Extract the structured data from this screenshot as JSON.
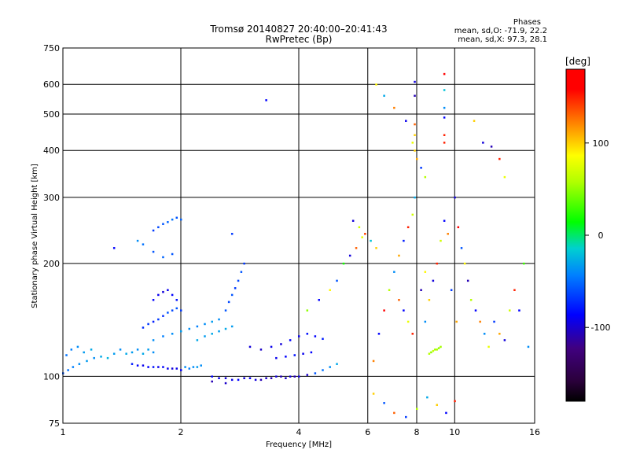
{
  "chart_data": {
    "type": "scatter",
    "title": "Tromsø 20140827 20:40:00–20:41:43",
    "subtitle": "RwPretec (Bp)",
    "xlabel": "Frequency [MHz]",
    "ylabel": "Stationary phase Virtual Height [km]",
    "x_scale": "log2",
    "y_scale": "log",
    "xlim": [
      1,
      16
    ],
    "ylim": [
      75,
      750
    ],
    "x_ticks": [
      1,
      2,
      4,
      6,
      8,
      10,
      16
    ],
    "y_ticks": [
      75,
      100,
      200,
      300,
      400,
      500,
      600,
      750
    ],
    "grid": true,
    "phases_box": {
      "heading": "Phases",
      "line1": "mean, sd,O: -71.9, 22.2",
      "line2": "mean, sd,X:  97.3, 28.1"
    },
    "colorbar": {
      "label": "[deg]",
      "ticks": [
        100,
        0,
        -100
      ],
      "range": [
        -180,
        180
      ]
    },
    "series": [
      {
        "points": [
          [
            1.0,
            102,
            -60
          ],
          [
            1.03,
            104,
            -50
          ],
          [
            1.06,
            106,
            -45
          ],
          [
            1.1,
            108,
            -40
          ],
          [
            1.15,
            110,
            -35
          ],
          [
            1.2,
            112,
            -40
          ],
          [
            1.25,
            113,
            -30
          ],
          [
            1.3,
            112,
            -25
          ],
          [
            1.02,
            114,
            -50
          ],
          [
            1.05,
            118,
            -45
          ],
          [
            1.09,
            120,
            -40
          ],
          [
            1.13,
            116,
            -35
          ],
          [
            1.18,
            118,
            -30
          ],
          [
            1.35,
            115,
            -35
          ],
          [
            1.4,
            118,
            -40
          ],
          [
            1.45,
            115,
            -30
          ],
          [
            1.5,
            116,
            -35
          ],
          [
            1.55,
            118,
            -40
          ],
          [
            1.6,
            115,
            -30
          ],
          [
            1.65,
            118,
            -35
          ],
          [
            1.7,
            116,
            -40
          ],
          [
            1.5,
            108,
            -80
          ],
          [
            1.55,
            107,
            -90
          ],
          [
            1.6,
            107,
            -95
          ],
          [
            1.65,
            106,
            -90
          ],
          [
            1.7,
            106,
            -85
          ],
          [
            1.75,
            106,
            -95
          ],
          [
            1.8,
            106,
            -90
          ],
          [
            1.85,
            105,
            -95
          ],
          [
            1.9,
            105,
            -100
          ],
          [
            1.95,
            105,
            -95
          ],
          [
            2.0,
            104,
            -90
          ],
          [
            2.05,
            106,
            -40
          ],
          [
            2.1,
            105,
            -45
          ],
          [
            2.15,
            106,
            -40
          ],
          [
            2.2,
            106,
            -35
          ],
          [
            2.25,
            107,
            -40
          ],
          [
            1.6,
            135,
            -75
          ],
          [
            1.65,
            138,
            -70
          ],
          [
            1.7,
            140,
            -80
          ],
          [
            1.75,
            142,
            -70
          ],
          [
            1.8,
            145,
            -75
          ],
          [
            1.85,
            148,
            -60
          ],
          [
            1.9,
            150,
            -65
          ],
          [
            1.95,
            152,
            -60
          ],
          [
            2.0,
            150,
            -70
          ],
          [
            1.7,
            160,
            -90
          ],
          [
            1.75,
            165,
            -95
          ],
          [
            1.8,
            168,
            -100
          ],
          [
            1.85,
            170,
            -95
          ],
          [
            1.9,
            165,
            -90
          ],
          [
            1.95,
            160,
            -85
          ],
          [
            1.7,
            125,
            -40
          ],
          [
            1.8,
            128,
            -45
          ],
          [
            1.9,
            130,
            -40
          ],
          [
            2.0,
            132,
            -35
          ],
          [
            2.1,
            134,
            -40
          ],
          [
            2.2,
            136,
            -45
          ],
          [
            2.3,
            138,
            -40
          ],
          [
            2.4,
            140,
            -35
          ],
          [
            2.5,
            142,
            -40
          ],
          [
            2.2,
            125,
            -30
          ],
          [
            2.3,
            128,
            -35
          ],
          [
            2.4,
            130,
            -30
          ],
          [
            2.5,
            132,
            -35
          ],
          [
            2.6,
            134,
            -30
          ],
          [
            2.7,
            136,
            -35
          ],
          [
            2.6,
            150,
            -60
          ],
          [
            2.65,
            158,
            -65
          ],
          [
            2.7,
            165,
            -60
          ],
          [
            2.75,
            172,
            -70
          ],
          [
            2.8,
            180,
            -65
          ],
          [
            2.85,
            190,
            -60
          ],
          [
            2.9,
            200,
            -70
          ],
          [
            1.7,
            245,
            -70
          ],
          [
            1.75,
            250,
            -65
          ],
          [
            1.8,
            255,
            -60
          ],
          [
            1.85,
            258,
            -55
          ],
          [
            1.9,
            262,
            -50
          ],
          [
            1.95,
            265,
            -60
          ],
          [
            2.0,
            262,
            -55
          ],
          [
            1.6,
            225,
            -50
          ],
          [
            1.7,
            215,
            -60
          ],
          [
            1.8,
            208,
            -55
          ],
          [
            1.9,
            212,
            -60
          ],
          [
            1.35,
            220,
            -90
          ],
          [
            1.55,
            230,
            -40
          ],
          [
            3.3,
            545,
            -90
          ],
          [
            2.7,
            240,
            -70
          ],
          [
            2.4,
            100,
            -90
          ],
          [
            2.5,
            99,
            -95
          ],
          [
            2.6,
            99,
            -100
          ],
          [
            2.7,
            98,
            -95
          ],
          [
            2.8,
            98,
            -90
          ],
          [
            2.9,
            99,
            -100
          ],
          [
            3.0,
            99,
            -95
          ],
          [
            3.1,
            98,
            -100
          ],
          [
            3.2,
            98,
            -110
          ],
          [
            3.3,
            99,
            -105
          ],
          [
            3.4,
            99,
            -110
          ],
          [
            3.5,
            100,
            -100
          ],
          [
            3.6,
            100,
            -110
          ],
          [
            3.7,
            99,
            -105
          ],
          [
            3.8,
            100,
            -100
          ],
          [
            3.9,
            100,
            -110
          ],
          [
            4.0,
            100,
            -100
          ],
          [
            4.2,
            101,
            -105
          ],
          [
            4.4,
            102,
            -60
          ],
          [
            3.0,
            120,
            -100
          ],
          [
            3.2,
            118,
            -105
          ],
          [
            3.4,
            120,
            -95
          ],
          [
            3.6,
            122,
            -100
          ],
          [
            3.8,
            125,
            -90
          ],
          [
            4.0,
            128,
            -95
          ],
          [
            4.2,
            130,
            -85
          ],
          [
            4.4,
            128,
            -90
          ],
          [
            4.6,
            126,
            -80
          ],
          [
            3.5,
            112,
            -95
          ],
          [
            3.7,
            113,
            -90
          ],
          [
            3.9,
            114,
            -85
          ],
          [
            4.1,
            115,
            -95
          ],
          [
            4.3,
            116,
            -90
          ],
          [
            2.4,
            97,
            -110
          ],
          [
            2.6,
            96,
            -105
          ],
          [
            4.6,
            104,
            -50
          ],
          [
            4.8,
            106,
            -40
          ],
          [
            5.0,
            108,
            -30
          ],
          [
            4.2,
            150,
            50
          ],
          [
            4.5,
            160,
            -90
          ],
          [
            4.8,
            170,
            90
          ],
          [
            5.0,
            180,
            -60
          ],
          [
            5.2,
            200,
            20
          ],
          [
            5.4,
            210,
            -100
          ],
          [
            5.6,
            220,
            130
          ],
          [
            5.8,
            235,
            80
          ],
          [
            6.2,
            110,
            120
          ],
          [
            6.4,
            130,
            -90
          ],
          [
            6.6,
            150,
            160
          ],
          [
            6.8,
            170,
            60
          ],
          [
            7.0,
            190,
            -40
          ],
          [
            7.2,
            210,
            110
          ],
          [
            7.4,
            230,
            -80
          ],
          [
            7.6,
            250,
            150
          ],
          [
            7.8,
            270,
            70
          ],
          [
            6.3,
            600,
            90
          ],
          [
            6.6,
            560,
            -30
          ],
          [
            7.0,
            520,
            120
          ],
          [
            7.5,
            480,
            -95
          ],
          [
            7.8,
            420,
            80
          ],
          [
            8.0,
            380,
            110
          ],
          [
            8.2,
            360,
            -70
          ],
          [
            8.4,
            340,
            60
          ],
          [
            7.9,
            610,
            -100
          ],
          [
            7.9,
            560,
            -110
          ],
          [
            7.9,
            470,
            130
          ],
          [
            7.9,
            440,
            100
          ],
          [
            7.9,
            400,
            100
          ],
          [
            7.9,
            300,
            -30
          ],
          [
            9.4,
            640,
            160
          ],
          [
            9.4,
            580,
            -20
          ],
          [
            9.4,
            520,
            -40
          ],
          [
            9.4,
            490,
            -90
          ],
          [
            9.4,
            440,
            150
          ],
          [
            9.4,
            420,
            150
          ],
          [
            8.6,
            115,
            60
          ],
          [
            8.7,
            116,
            50
          ],
          [
            8.8,
            117,
            65
          ],
          [
            8.9,
            118,
            55
          ],
          [
            9.0,
            118,
            60
          ],
          [
            9.1,
            119,
            50
          ],
          [
            9.2,
            120,
            55
          ],
          [
            8.4,
            140,
            -40
          ],
          [
            8.6,
            160,
            100
          ],
          [
            8.8,
            180,
            -100
          ],
          [
            9.0,
            200,
            150
          ],
          [
            9.2,
            230,
            70
          ],
          [
            9.4,
            260,
            -90
          ],
          [
            9.6,
            240,
            120
          ],
          [
            10.0,
            300,
            -100
          ],
          [
            10.2,
            250,
            160
          ],
          [
            10.4,
            220,
            -60
          ],
          [
            10.6,
            200,
            90
          ],
          [
            10.8,
            180,
            -110
          ],
          [
            11.0,
            160,
            60
          ],
          [
            11.3,
            150,
            -90
          ],
          [
            11.6,
            140,
            120
          ],
          [
            11.9,
            130,
            -40
          ],
          [
            12.2,
            120,
            80
          ],
          [
            12.6,
            140,
            -70
          ],
          [
            13.0,
            130,
            110
          ],
          [
            13.4,
            125,
            -100
          ],
          [
            13.8,
            150,
            70
          ],
          [
            14.2,
            170,
            150
          ],
          [
            14.6,
            150,
            -90
          ],
          [
            15.0,
            200,
            30
          ],
          [
            15.4,
            120,
            -40
          ],
          [
            11.2,
            480,
            100
          ],
          [
            11.8,
            420,
            -100
          ],
          [
            12.4,
            410,
            -110
          ],
          [
            13.0,
            380,
            150
          ],
          [
            13.4,
            340,
            80
          ],
          [
            6.2,
            90,
            100
          ],
          [
            6.6,
            85,
            -60
          ],
          [
            7.0,
            80,
            130
          ],
          [
            7.5,
            78,
            -70
          ],
          [
            8.0,
            82,
            60
          ],
          [
            8.5,
            88,
            -30
          ],
          [
            9.0,
            84,
            100
          ],
          [
            9.5,
            80,
            -90
          ],
          [
            10.0,
            86,
            150
          ],
          [
            5.5,
            260,
            -100
          ],
          [
            5.7,
            250,
            70
          ],
          [
            5.9,
            240,
            140
          ],
          [
            6.1,
            230,
            -20
          ],
          [
            6.3,
            220,
            100
          ],
          [
            7.2,
            160,
            130
          ],
          [
            7.4,
            150,
            -90
          ],
          [
            7.6,
            140,
            80
          ],
          [
            7.8,
            130,
            150
          ],
          [
            8.2,
            170,
            -110
          ],
          [
            8.4,
            190,
            90
          ],
          [
            9.8,
            170,
            -70
          ],
          [
            10.1,
            140,
            110
          ]
        ]
      }
    ]
  }
}
